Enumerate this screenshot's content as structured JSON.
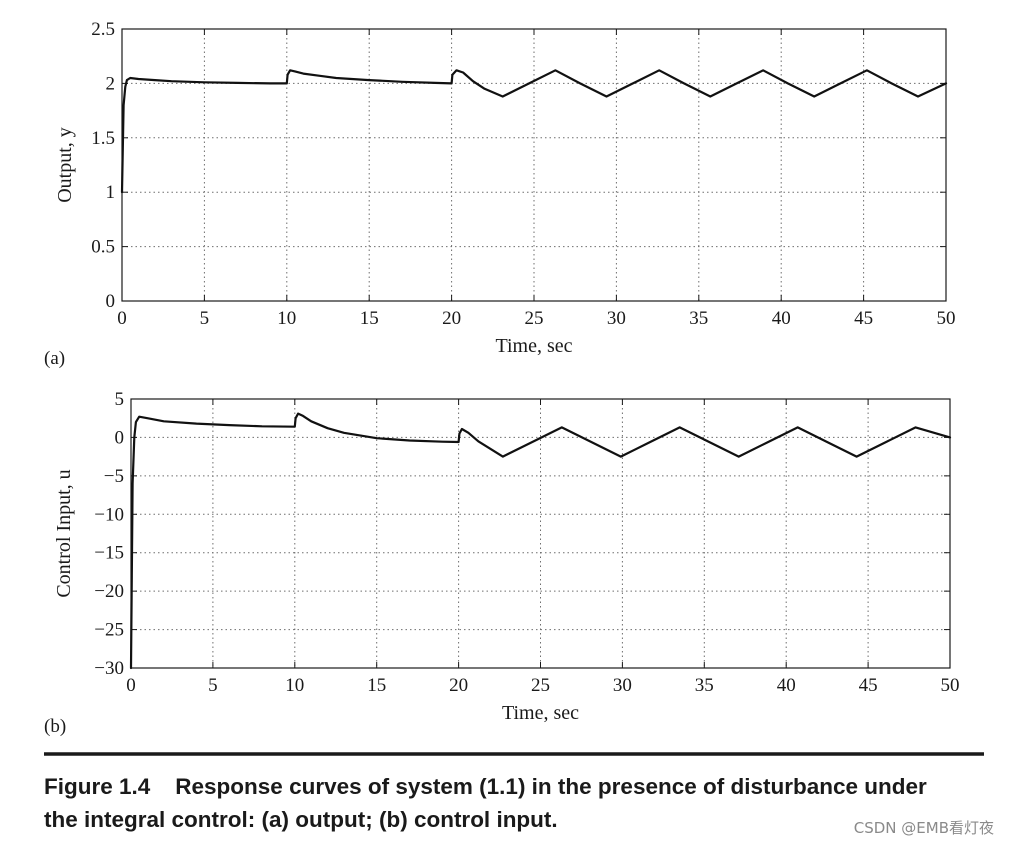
{
  "chart_data": [
    {
      "type": "line",
      "panel_label": "(a)",
      "xlabel": "Time, sec",
      "ylabel": "Output, y",
      "xlim": [
        0,
        50
      ],
      "ylim": [
        0,
        2.5
      ],
      "xticks": [
        "0",
        "5",
        "10",
        "15",
        "20",
        "25",
        "30",
        "35",
        "40",
        "45",
        "50"
      ],
      "yticks": [
        "0",
        "0.5",
        "1",
        "1.5",
        "2",
        "2.5"
      ],
      "grid": true,
      "series": [
        {
          "color": "#111111",
          "x": [
            0,
            0.05,
            0.1,
            0.2,
            0.3,
            0.5,
            1,
            2,
            3,
            5,
            7,
            9,
            10,
            10.05,
            10.2,
            10.5,
            11,
            12,
            13,
            15,
            17,
            19,
            20,
            20.05,
            20.3,
            20.7,
            21.3,
            22,
            23.1,
            24.7,
            26.3,
            27.8,
            29.4,
            31,
            32.6,
            34.1,
            35.7,
            37.3,
            38.9,
            40.4,
            42,
            43.6,
            45.2,
            46.7,
            48.3,
            50
          ],
          "y": [
            1.0,
            1.4,
            1.8,
            1.97,
            2.03,
            2.05,
            2.04,
            2.03,
            2.02,
            2.01,
            2.005,
            2.0,
            2.0,
            2.08,
            2.12,
            2.11,
            2.09,
            2.07,
            2.05,
            2.03,
            2.015,
            2.005,
            2.0,
            2.08,
            2.12,
            2.1,
            2.02,
            1.95,
            1.88,
            2.0,
            2.12,
            2.0,
            1.88,
            2.0,
            2.12,
            2.0,
            1.88,
            2.0,
            2.12,
            2.0,
            1.88,
            2.0,
            2.12,
            2.0,
            1.88,
            2.0
          ]
        }
      ]
    },
    {
      "type": "line",
      "panel_label": "(b)",
      "xlabel": "Time, sec",
      "ylabel": "Control Input, u",
      "xlim": [
        0,
        50
      ],
      "ylim": [
        -30,
        5
      ],
      "xticks": [
        "0",
        "5",
        "10",
        "15",
        "20",
        "25",
        "30",
        "35",
        "40",
        "45",
        "50"
      ],
      "yticks": [
        "−30",
        "−25",
        "−20",
        "−15",
        "−10",
        "−5",
        "0",
        "5"
      ],
      "grid": true,
      "series": [
        {
          "color": "#111111",
          "x": [
            0,
            0.05,
            0.1,
            0.2,
            0.3,
            0.5,
            1,
            2,
            4,
            6,
            8,
            10,
            10.05,
            10.2,
            10.5,
            11,
            12,
            13,
            15,
            17,
            19,
            20,
            20.05,
            20.2,
            20.6,
            21.2,
            22.7,
            24.5,
            26.3,
            28.1,
            29.9,
            31.7,
            33.5,
            35.3,
            37.1,
            38.9,
            40.7,
            42.5,
            44.3,
            46.1,
            47.9,
            50
          ],
          "y": [
            -30,
            -18,
            -6,
            0,
            2.0,
            2.7,
            2.5,
            2.1,
            1.8,
            1.6,
            1.45,
            1.4,
            2.5,
            3.1,
            2.8,
            2.1,
            1.2,
            0.6,
            -0.1,
            -0.4,
            -0.55,
            -0.6,
            0.5,
            1.1,
            0.6,
            -0.5,
            -2.5,
            -0.6,
            1.3,
            -0.6,
            -2.5,
            -0.6,
            1.3,
            -0.6,
            -2.5,
            -0.6,
            1.3,
            -0.6,
            -2.5,
            -0.6,
            1.3,
            0.0
          ]
        }
      ]
    }
  ],
  "caption": {
    "line1": "Figure 1.4    Response curves of system (1.1) in the presence of disturbance under",
    "line2": "the integral control: (a) output; (b) control input."
  },
  "watermark": "CSDN @EMB看灯夜"
}
